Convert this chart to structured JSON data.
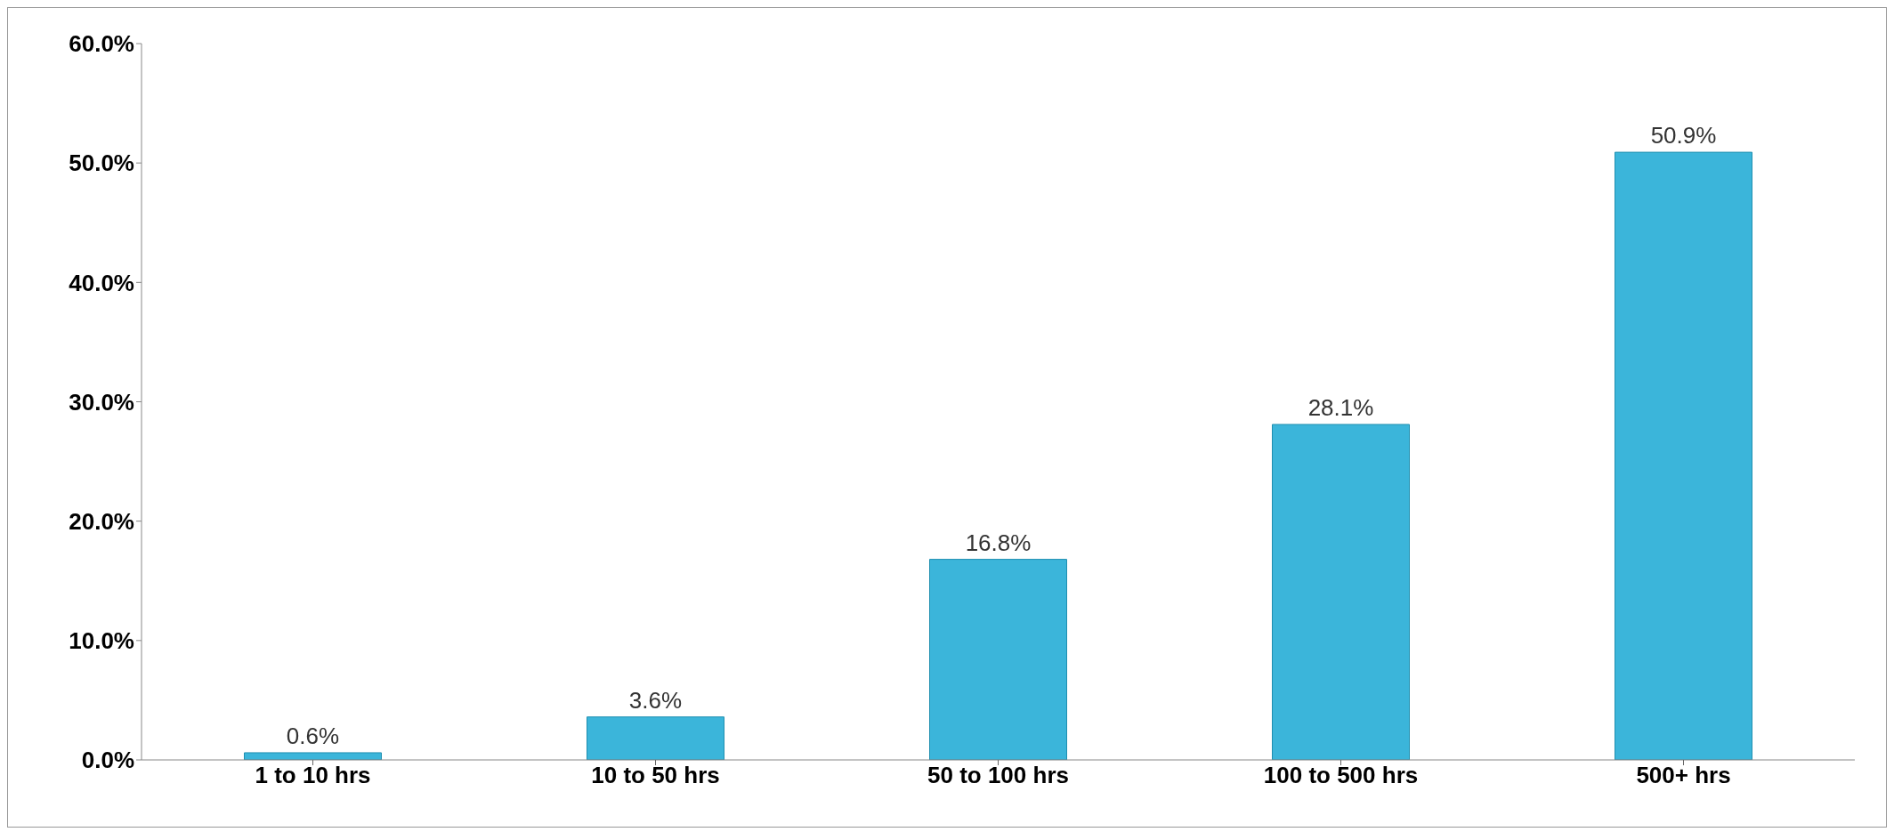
{
  "chart_data": {
    "type": "bar",
    "categories": [
      "1 to 10 hrs",
      "10 to 50 hrs",
      "50 to 100 hrs",
      "100 to 500 hrs",
      "500+ hrs"
    ],
    "values": [
      0.6,
      3.6,
      16.8,
      28.1,
      50.9
    ],
    "value_labels": [
      "0.6%",
      "3.6%",
      "16.8%",
      "28.1%",
      "50.9%"
    ],
    "color": "#3bb5da",
    "ylim": [
      0,
      60
    ],
    "yticks": [
      {
        "value": 0,
        "label": "0.0%"
      },
      {
        "value": 10,
        "label": "10.0%"
      },
      {
        "value": 20,
        "label": "20.0%"
      },
      {
        "value": 30,
        "label": "30.0%"
      },
      {
        "value": 40,
        "label": "40.0%"
      },
      {
        "value": 50,
        "label": "50.0%"
      },
      {
        "value": 60,
        "label": "60.0%"
      }
    ],
    "grid": false
  }
}
